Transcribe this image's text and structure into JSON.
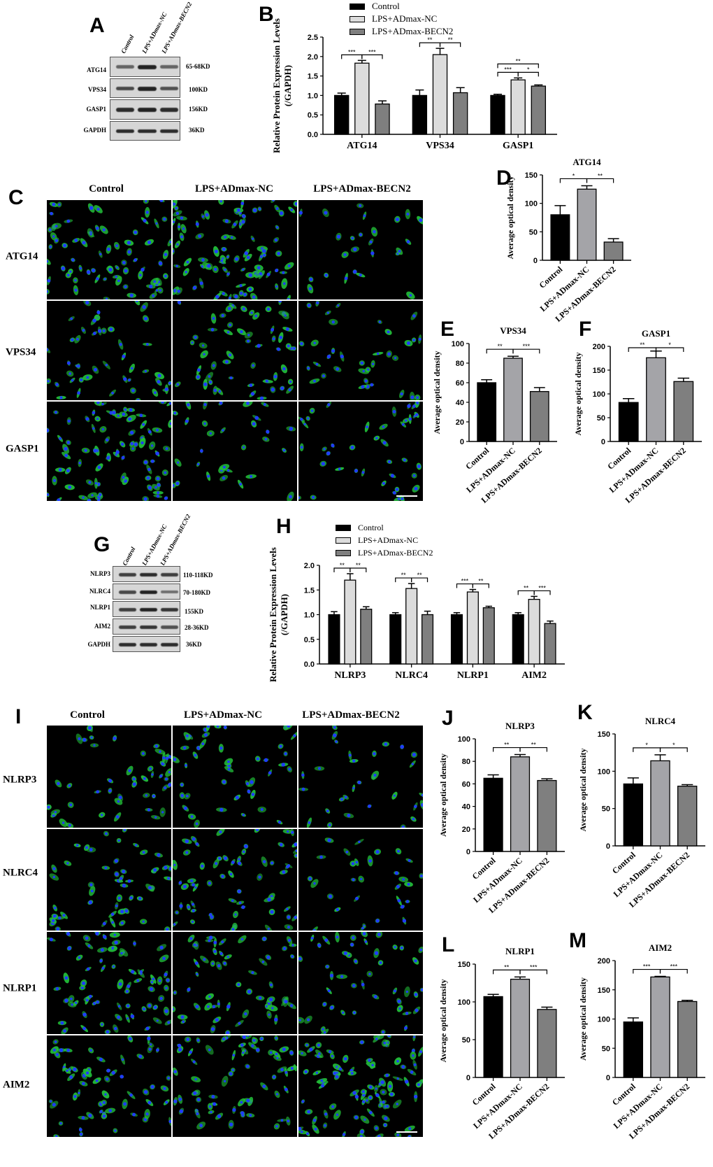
{
  "panels": {
    "A": "A",
    "B": "B",
    "C": "C",
    "D": "D",
    "E": "E",
    "F": "F",
    "G": "G",
    "H": "H",
    "I": "I",
    "J": "J",
    "K": "K",
    "L": "L",
    "M": "M"
  },
  "groups": [
    "Control",
    "LPS+ADmax-NC",
    "LPS+ADmax-BECN2"
  ],
  "colors": {
    "control": "#000000",
    "nc_grouped": "#dcdcdc",
    "nc_single": "#a4a4a8",
    "becn2": "#7f7f7f"
  },
  "western_blots": [
    {
      "panel": "A",
      "lanes": [
        "Control",
        "LPS+ADmax-NC",
        "LPS+ADmax-BECN2"
      ],
      "rows": [
        {
          "protein": "ATG14",
          "size": "65-68KD"
        },
        {
          "protein": "VPS34",
          "size": "100KD"
        },
        {
          "protein": "GASP1",
          "size": "156KD"
        },
        {
          "protein": "GAPDH",
          "size": "36KD"
        }
      ]
    },
    {
      "panel": "G",
      "lanes": [
        "Control",
        "LPS+ADmax-NC",
        "LPS+ADmax-BECN2"
      ],
      "rows": [
        {
          "protein": "NLRP3",
          "size": "110-118KD"
        },
        {
          "protein": "NLRC4",
          "size": "70-180KD"
        },
        {
          "protein": "NLRP1",
          "size": "155KD"
        },
        {
          "protein": "AIM2",
          "size": "28-36KD"
        },
        {
          "protein": "GAPDH",
          "size": "36KD"
        }
      ]
    }
  ],
  "immunofluorescence": [
    {
      "panel": "C",
      "columns": [
        "Control",
        "LPS+ADmax-NC",
        "LPS+ADmax-BECN2"
      ],
      "rows": [
        "ATG14",
        "VPS34",
        "GASP1"
      ],
      "stain_colors": {
        "protein": "#22c03a",
        "nucleus": "#1f3cff"
      }
    },
    {
      "panel": "I",
      "columns": [
        "Control",
        "LPS+ADmax-NC",
        "LPS+ADmax-BECN2"
      ],
      "rows": [
        "NLRP3",
        "NLRC4",
        "NLRP1",
        "AIM2"
      ],
      "stain_colors": {
        "protein": "#22c03a",
        "nucleus": "#1f3cff"
      }
    }
  ],
  "chart_data": [
    {
      "id": "B",
      "type": "bar",
      "title": "",
      "ylabel": [
        "Relative Protein Expression Levels",
        "(/GAPDH)"
      ],
      "xlabel": "",
      "categories": [
        "ATG14",
        "VPS34",
        "GASP1"
      ],
      "ylim": [
        0,
        2.5
      ],
      "yticks": [
        0.0,
        0.5,
        1.0,
        1.5,
        2.0,
        2.5
      ],
      "tick_decimals": 1,
      "grid": false,
      "legend": "top",
      "series": [
        {
          "name": "Control",
          "values": [
            1.0,
            1.0,
            1.0
          ],
          "errors": [
            0.06,
            0.14,
            0.03
          ]
        },
        {
          "name": "LPS+ADmax-NC",
          "values": [
            1.83,
            2.05,
            1.4
          ],
          "errors": [
            0.07,
            0.16,
            0.05
          ]
        },
        {
          "name": "LPS+ADmax-BECN2",
          "values": [
            0.78,
            1.07,
            1.24
          ],
          "errors": [
            0.08,
            0.13,
            0.03
          ]
        }
      ],
      "significance": [
        {
          "category": 0,
          "from": 0,
          "to": 1,
          "label": "***"
        },
        {
          "category": 0,
          "from": 1,
          "to": 2,
          "label": "***"
        },
        {
          "category": 1,
          "from": 0,
          "to": 1,
          "label": "**"
        },
        {
          "category": 1,
          "from": 1,
          "to": 2,
          "label": "**"
        },
        {
          "category": 2,
          "from": 0,
          "to": 1,
          "label": "***"
        },
        {
          "category": 2,
          "from": 1,
          "to": 2,
          "label": "*"
        },
        {
          "category": 2,
          "from": 0,
          "to": 2,
          "label": "**"
        }
      ]
    },
    {
      "id": "D",
      "type": "bar",
      "title": "ATG14",
      "ylabel": [
        "Average optical density"
      ],
      "categories": [
        "Control",
        "LPS+ADmax-NC",
        "LPS+ADmax-BECN2"
      ],
      "ylim": [
        0,
        150
      ],
      "yticks": [
        0,
        50,
        100,
        150
      ],
      "tick_decimals": 0,
      "grid": false,
      "series": [
        {
          "values": [
            80,
            125,
            32
          ],
          "errors": [
            16,
            6,
            6
          ]
        }
      ],
      "significance": [
        {
          "from": 0,
          "to": 1,
          "label": "*"
        },
        {
          "from": 1,
          "to": 2,
          "label": "**"
        }
      ]
    },
    {
      "id": "E",
      "type": "bar",
      "title": "VPS34",
      "ylabel": [
        "Average optical density"
      ],
      "categories": [
        "Control",
        "LPS+ADmax-NC",
        "LPS+ADmax-BECN2"
      ],
      "ylim": [
        0,
        100
      ],
      "yticks": [
        0,
        20,
        40,
        60,
        80,
        100
      ],
      "tick_decimals": 0,
      "grid": false,
      "series": [
        {
          "values": [
            60,
            85,
            51
          ],
          "errors": [
            3,
            2,
            4
          ]
        }
      ],
      "significance": [
        {
          "from": 0,
          "to": 1,
          "label": "**"
        },
        {
          "from": 1,
          "to": 2,
          "label": "***"
        }
      ]
    },
    {
      "id": "F",
      "type": "bar",
      "title": "GASP1",
      "ylabel": [
        "Average optical density"
      ],
      "categories": [
        "Control",
        "LPS+ADmax-NC",
        "LPS+ADmax-BECN2"
      ],
      "ylim": [
        0,
        200
      ],
      "yticks": [
        0,
        50,
        100,
        150,
        200
      ],
      "tick_decimals": 0,
      "grid": false,
      "series": [
        {
          "values": [
            82,
            176,
            126
          ],
          "errors": [
            8,
            14,
            7
          ]
        }
      ],
      "significance": [
        {
          "from": 0,
          "to": 1,
          "label": "**"
        },
        {
          "from": 1,
          "to": 2,
          "label": "*"
        }
      ]
    },
    {
      "id": "H",
      "type": "bar",
      "title": "",
      "ylabel": [
        "Relative Protein Expression Levels",
        "(/GAPDH)"
      ],
      "xlabel": "",
      "categories": [
        "NLRP3",
        "NLRC4",
        "NLRP1",
        "AIM2"
      ],
      "ylim": [
        0,
        2.0
      ],
      "yticks": [
        0.0,
        0.5,
        1.0,
        1.5,
        2.0
      ],
      "tick_decimals": 1,
      "grid": false,
      "legend": "top",
      "series": [
        {
          "name": "Control",
          "values": [
            1.0,
            1.0,
            1.0,
            1.0
          ],
          "errors": [
            0.06,
            0.04,
            0.04,
            0.04
          ]
        },
        {
          "name": "LPS+ADmax-NC",
          "values": [
            1.7,
            1.53,
            1.46,
            1.31
          ],
          "errors": [
            0.13,
            0.1,
            0.05,
            0.06
          ]
        },
        {
          "name": "LPS+ADmax-BECN2",
          "values": [
            1.11,
            1.0,
            1.14,
            0.82
          ],
          "errors": [
            0.05,
            0.07,
            0.03,
            0.05
          ]
        }
      ],
      "significance": [
        {
          "category": 0,
          "from": 0,
          "to": 1,
          "label": "**"
        },
        {
          "category": 0,
          "from": 1,
          "to": 2,
          "label": "**"
        },
        {
          "category": 1,
          "from": 0,
          "to": 1,
          "label": "**"
        },
        {
          "category": 1,
          "from": 1,
          "to": 2,
          "label": "**"
        },
        {
          "category": 2,
          "from": 0,
          "to": 1,
          "label": "***"
        },
        {
          "category": 2,
          "from": 1,
          "to": 2,
          "label": "**"
        },
        {
          "category": 3,
          "from": 0,
          "to": 1,
          "label": "**"
        },
        {
          "category": 3,
          "from": 1,
          "to": 2,
          "label": "***"
        }
      ]
    },
    {
      "id": "J",
      "type": "bar",
      "title": "NLRP3",
      "ylabel": [
        "Average optical density"
      ],
      "categories": [
        "Control",
        "LPS+ADmax-NC",
        "LPS+ADmax-BECN2"
      ],
      "ylim": [
        0,
        100
      ],
      "yticks": [
        0,
        20,
        40,
        60,
        80,
        100
      ],
      "tick_decimals": 0,
      "grid": false,
      "series": [
        {
          "values": [
            65,
            84,
            63
          ],
          "errors": [
            3,
            2,
            1.5
          ]
        }
      ],
      "significance": [
        {
          "from": 0,
          "to": 1,
          "label": "**"
        },
        {
          "from": 1,
          "to": 2,
          "label": "**"
        }
      ]
    },
    {
      "id": "K",
      "type": "bar",
      "title": "NLRC4",
      "ylabel": [
        "Average optical density"
      ],
      "categories": [
        "Control",
        "LPS+ADmax-NC",
        "LPS+ADmax-BECN2"
      ],
      "ylim": [
        0,
        150
      ],
      "yticks": [
        0,
        50,
        100,
        150
      ],
      "tick_decimals": 0,
      "grid": false,
      "series": [
        {
          "values": [
            83,
            114,
            80
          ],
          "errors": [
            8,
            8,
            2
          ]
        }
      ],
      "significance": [
        {
          "from": 0,
          "to": 1,
          "label": "*"
        },
        {
          "from": 1,
          "to": 2,
          "label": "*"
        }
      ]
    },
    {
      "id": "L",
      "type": "bar",
      "title": "NLRP1",
      "ylabel": [
        "Average optical density"
      ],
      "categories": [
        "Control",
        "LPS+ADmax-NC",
        "LPS+ADmax-BECN2"
      ],
      "ylim": [
        0,
        150
      ],
      "yticks": [
        0,
        50,
        100,
        150
      ],
      "tick_decimals": 0,
      "grid": false,
      "series": [
        {
          "values": [
            107,
            130,
            90
          ],
          "errors": [
            3,
            3,
            3
          ]
        }
      ],
      "significance": [
        {
          "from": 0,
          "to": 1,
          "label": "**"
        },
        {
          "from": 1,
          "to": 2,
          "label": "***"
        }
      ]
    },
    {
      "id": "M",
      "type": "bar",
      "title": "AIM2",
      "ylabel": [
        "Average optical density"
      ],
      "categories": [
        "Control",
        "LPS+ADmax-NC",
        "LPS+ADmax-BECN2"
      ],
      "ylim": [
        0,
        200
      ],
      "yticks": [
        0,
        50,
        100,
        150,
        200
      ],
      "tick_decimals": 0,
      "grid": false,
      "series": [
        {
          "values": [
            95,
            172,
            130
          ],
          "errors": [
            7,
            1,
            2
          ]
        }
      ],
      "significance": [
        {
          "from": 0,
          "to": 1,
          "label": "***"
        },
        {
          "from": 1,
          "to": 2,
          "label": "***"
        }
      ]
    }
  ]
}
